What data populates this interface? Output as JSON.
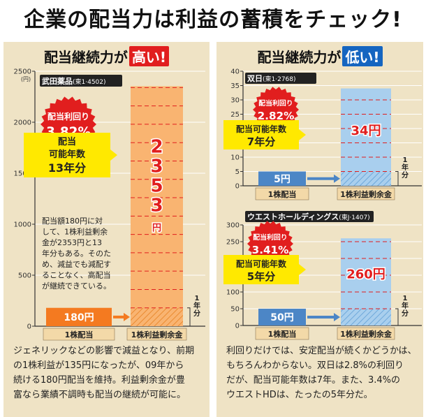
{
  "page": {
    "title": "企業の配当力は利益の蓄積をチェック!"
  },
  "left": {
    "header_prefix": "配当継続力が",
    "header_tag": "高い!",
    "footnote_lines": [
      "ジェネリックなどの影響で減益となり、前期",
      "の1株利益が135円になったが、09年から",
      "続ける180円配当を維持。利益剰余金が豊",
      "富なら業績不調時も配当の継続が可能に。"
    ]
  },
  "right": {
    "header_prefix": "配当継続力が",
    "header_tag": "低い!",
    "footnote_lines": [
      "利回りだけでは、安定配当が続くかどうかは、",
      "もちろんわからない。双日は2.8%の利回り",
      "だが、配当可能年数は7年。また、3.4%の",
      "ウエストHDは、たったの5年分だ。"
    ]
  },
  "colors": {
    "dividend_bar": "#f47a20",
    "surplus_bar": "#f9b471",
    "dividend_bar_low": "#4c86c6",
    "surplus_bar_low": "#a9cfee",
    "badge_red": "#e11e1e",
    "callout_yellow": "#ffe900",
    "panel_bg": "#efe3c5",
    "company_label_bg": "#222222"
  },
  "chart_data": [
    {
      "type": "bar",
      "company": "武田薬品",
      "ticker": "(東1·4502)",
      "y_unit": "(円)",
      "ylim": [
        0,
        2500
      ],
      "y_ticks": [
        0,
        500,
        1000,
        1500,
        2000,
        2500
      ],
      "categories": [
        "1株配当",
        "1株利益剰余金"
      ],
      "values": [
        180,
        2353
      ],
      "value_labels": [
        "180円",
        "2353円"
      ],
      "yield_label": "配当利回り",
      "yield_value": "3.82%",
      "years_label": "配当可能年数",
      "years_value": "13年分",
      "one_year_label": "1年分",
      "annotation_lines": [
        "配当額180円に対",
        "して、1株利益剰余",
        "金が2353円と13",
        "年分もある。そのた",
        "め、減益でも減配す",
        "ることなく、高配当",
        "が継続できている。"
      ]
    },
    {
      "type": "bar",
      "company": "双日",
      "ticker": "(東1·2768)",
      "ylim": [
        0,
        40
      ],
      "y_ticks": [
        0,
        5,
        10,
        15,
        20,
        25,
        30,
        35,
        40
      ],
      "categories": [
        "1株配当",
        "1株利益剰余金"
      ],
      "values": [
        5,
        34
      ],
      "value_labels": [
        "5円",
        "34円"
      ],
      "yield_label": "配当利回り",
      "yield_value": "2.82%",
      "years_label": "配当可能年数",
      "years_value": "7年分",
      "one_year_label": "1年分"
    },
    {
      "type": "bar",
      "company": "ウエストホールディングス",
      "ticker": "(東J·1407)",
      "ylim": [
        0,
        300
      ],
      "y_ticks": [
        0,
        50,
        100,
        150,
        200,
        250,
        300
      ],
      "categories": [
        "1株配当",
        "1株利益剰余金"
      ],
      "values": [
        50,
        260
      ],
      "value_labels": [
        "50円",
        "260円"
      ],
      "yield_label": "配当利回り",
      "yield_value": "3.41%",
      "years_label": "配当可能年数",
      "years_value": "5年分",
      "one_year_label": "1年分"
    }
  ]
}
